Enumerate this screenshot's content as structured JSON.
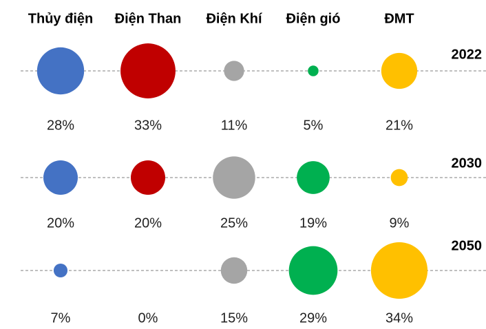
{
  "chart_data": {
    "type": "bubble",
    "categories": [
      "Thủy điện",
      "Điện Than",
      "Điện Khí",
      "Điện gió",
      "ĐMT"
    ],
    "colors": [
      "#4472c4",
      "#c00000",
      "#a5a5a5",
      "#00b050",
      "#ffc000"
    ],
    "series": [
      {
        "name": "2022",
        "values": [
          28,
          33,
          11,
          5,
          21
        ],
        "value_labels": [
          "28%",
          "33%",
          "11%",
          "5%",
          "21%"
        ]
      },
      {
        "name": "2030",
        "values": [
          20,
          20,
          25,
          19,
          9
        ],
        "value_labels": [
          "20%",
          "20%",
          "25%",
          "19%",
          "9%"
        ]
      },
      {
        "name": "2050",
        "values": [
          7,
          0,
          15,
          29,
          34
        ],
        "value_labels": [
          "7%",
          "0%",
          "15%",
          "29%",
          "34%"
        ]
      }
    ]
  }
}
